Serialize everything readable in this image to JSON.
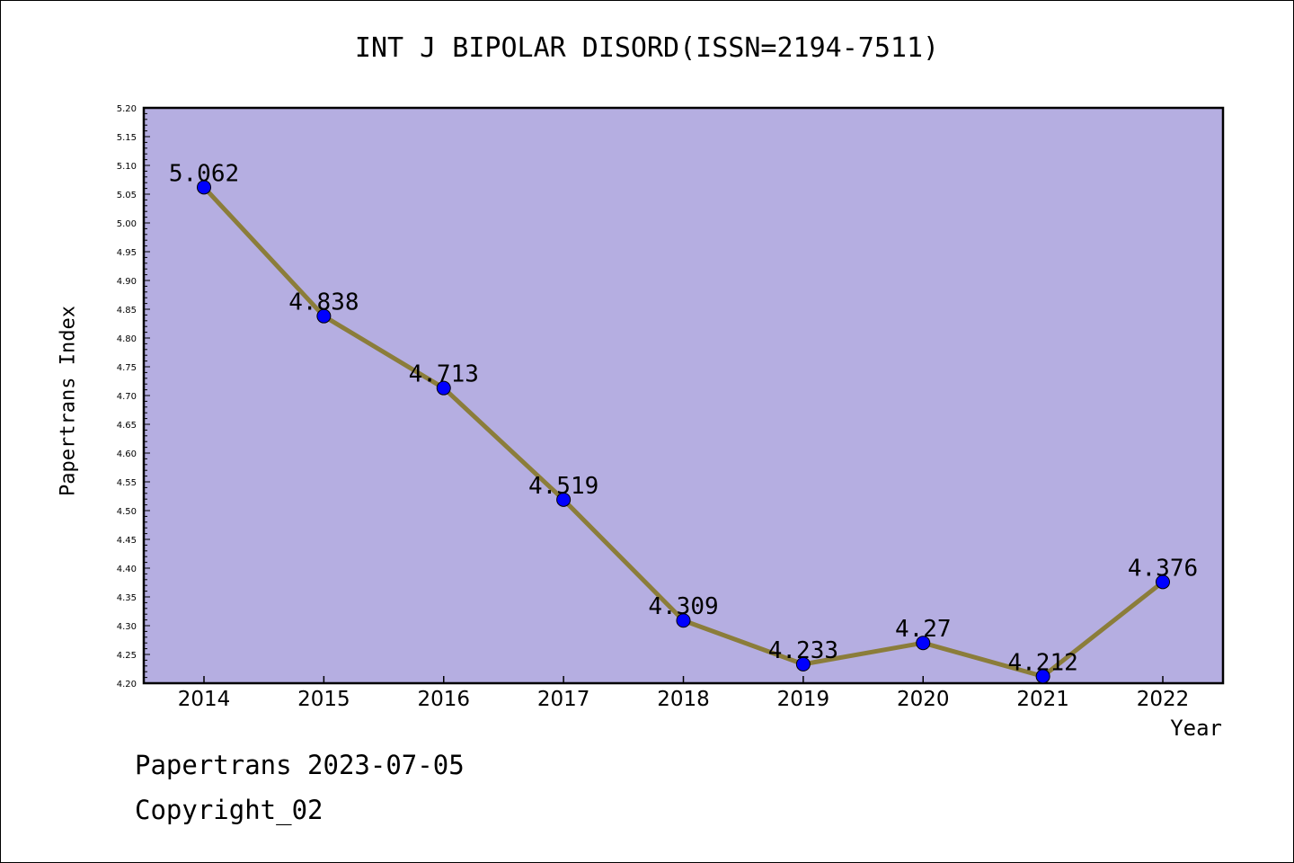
{
  "chart_data": {
    "type": "line",
    "title": "INT J BIPOLAR DISORD(ISSN=2194-7511)",
    "xlabel": "Year",
    "ylabel": "Papertrans Index",
    "categories": [
      "2014",
      "2015",
      "2016",
      "2017",
      "2018",
      "2019",
      "2020",
      "2021",
      "2022"
    ],
    "values": [
      5.062,
      4.838,
      4.713,
      4.519,
      4.309,
      4.233,
      4.27,
      4.212,
      4.376
    ],
    "data_labels": [
      "5.062",
      "4.838",
      "4.713",
      "4.519",
      "4.309",
      "4.233",
      "4.27",
      "4.212",
      "4.376"
    ],
    "ylim": [
      4.2,
      5.2
    ],
    "yticks": [
      "4.20",
      "4.25",
      "4.30",
      "4.35",
      "4.40",
      "4.45",
      "4.50",
      "4.55",
      "4.60",
      "4.65",
      "4.70",
      "4.75",
      "4.80",
      "4.85",
      "4.90",
      "4.95",
      "5.00",
      "5.05",
      "5.10",
      "5.15",
      "5.20"
    ],
    "grid": false,
    "colors": {
      "plot_background": "#b5aee1",
      "line": "#8b7d3a",
      "marker": "#0000ff"
    }
  },
  "footer": {
    "date_text": "Papertrans 2023-07-05",
    "copyright_text": "Copyright_02"
  }
}
